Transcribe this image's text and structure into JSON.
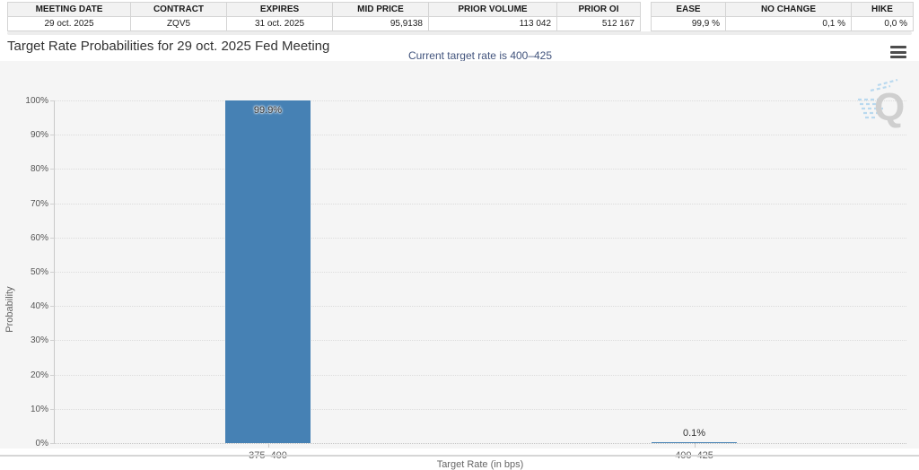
{
  "tables": {
    "contract": {
      "headers": [
        "MEETING DATE",
        "CONTRACT",
        "EXPIRES",
        "MID PRICE",
        "PRIOR VOLUME",
        "PRIOR OI"
      ],
      "row": [
        "29 oct. 2025",
        "ZQV5",
        "31 oct. 2025",
        "95,9138",
        "113 042",
        "512 167"
      ]
    },
    "summary": {
      "headers": [
        "EASE",
        "NO CHANGE",
        "HIKE"
      ],
      "row": [
        "99,9 %",
        "0,1 %",
        "0,0 %"
      ]
    }
  },
  "icons": {
    "menu": "hamburger-menu-icon",
    "watermark": "quikstrike-q-logo"
  },
  "chart_data": {
    "type": "bar",
    "title": "Target Rate Probabilities for 29 oct. 2025 Fed Meeting",
    "subtitle": "Current target rate is 400–425",
    "categories": [
      "375–400",
      "400–425"
    ],
    "values": [
      99.9,
      0.1
    ],
    "value_labels": [
      "99.9%",
      "0.1%"
    ],
    "xlabel": "Target Rate (in bps)",
    "ylabel": "Probability",
    "ylim": [
      0,
      100
    ],
    "ytick_step": 10,
    "ytick_suffix": "%",
    "grid": "dotted horizontal",
    "legend": "none",
    "bar_color": "#4681b4",
    "panel_color": "#f5f5f5",
    "subtitle_color": "#41537c"
  }
}
